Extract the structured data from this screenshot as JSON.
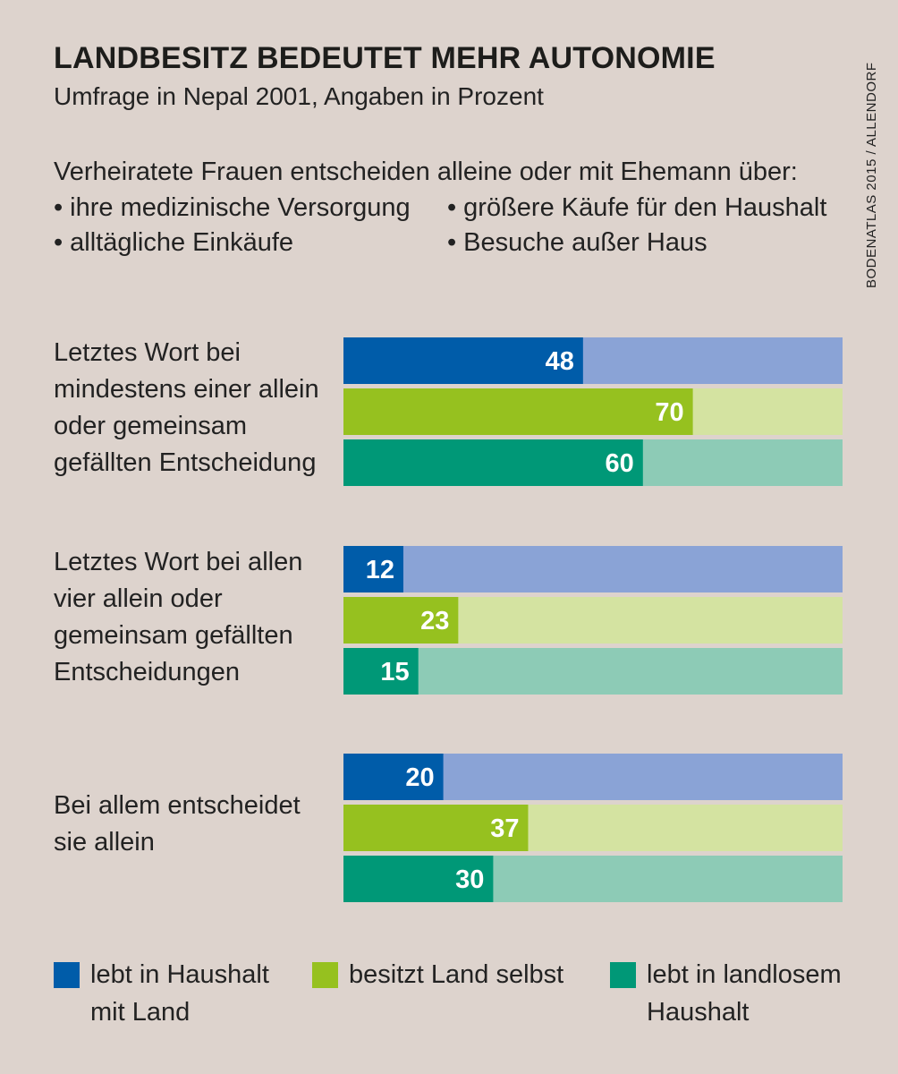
{
  "title": "LANDBESITZ BEDEUTET MEHR AUTONOMIE",
  "subtitle": "Umfrage in Nepal 2001, Angaben in Prozent",
  "intro": "Verheiratete Frauen entscheiden alleine oder mit Ehemann über:",
  "bullets": [
    "ihre medizinische Versorgung",
    "größere Käufe für den Haushalt",
    "alltägliche Einkäufe",
    "Besuche außer Haus"
  ],
  "credit": "BODENATLAS 2015 / ALLENDORF",
  "colors": {
    "lebt in Haushalt mit Land": "#005ca9",
    "lebt in Haushalt mit Land (rest)": "#8aa3d6",
    "besitzt Land selbst": "#96c11f",
    "besitzt Land selbst (rest)": "#d4e3a1",
    "lebt in landlosem Haushalt": "#009877",
    "lebt in landlosem Haushalt (rest)": "#8dcbb6"
  },
  "chart_data": {
    "type": "bar",
    "orientation": "horizontal",
    "stacked_to_100": true,
    "unit": "%",
    "categories": [
      "Letztes Wort bei mindestens einer allein oder gemeinsam gefällten Entscheidung",
      "Letztes Wort bei allen vier allein oder gemeinsam gefällten Entscheidungen",
      "Bei allem entscheidet sie allein"
    ],
    "series": [
      {
        "name": "lebt in Haushalt mit Land",
        "values": [
          48,
          12,
          20
        ]
      },
      {
        "name": "besitzt Land selbst",
        "values": [
          70,
          23,
          37
        ]
      },
      {
        "name": "lebt in landlosem Haushalt",
        "values": [
          60,
          15,
          30
        ]
      }
    ],
    "xlim": [
      0,
      100
    ],
    "grid": false,
    "legend_position": "bottom"
  }
}
